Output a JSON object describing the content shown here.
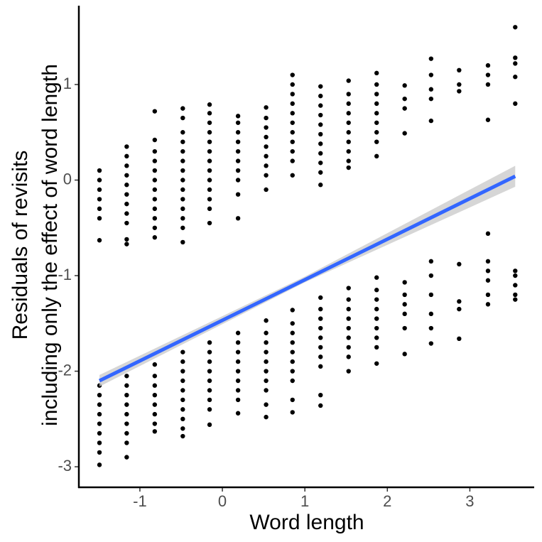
{
  "chart_data": {
    "type": "scatter",
    "xlabel": "Word length",
    "ylabel": [
      "Residuals of revisits",
      "including only the effect of word length"
    ],
    "xlim": [
      -1.74,
      3.78
    ],
    "ylim": [
      -3.215,
      1.825
    ],
    "xticks": [
      -1,
      0,
      1,
      2,
      3
    ],
    "yticks": [
      -3,
      -2,
      -1,
      0,
      1
    ],
    "grid": false,
    "point_color": "#000000",
    "columns": [
      {
        "x": -1.49,
        "y": [
          0.1,
          0.0,
          -0.1,
          -0.2,
          -0.3,
          -0.4,
          -0.63,
          -2.15,
          -2.25,
          -2.35,
          -2.45,
          -2.55,
          -2.65,
          -2.75,
          -2.85,
          -2.98
        ]
      },
      {
        "x": -1.16,
        "y": [
          0.35,
          0.25,
          0.15,
          0.05,
          -0.05,
          -0.15,
          -0.25,
          -0.35,
          -0.45,
          -0.62,
          -0.67,
          -2.05,
          -2.15,
          -2.25,
          -2.35,
          -2.45,
          -2.55,
          -2.65,
          -2.75,
          -2.9
        ]
      },
      {
        "x": -0.82,
        "y": [
          0.72,
          0.42,
          0.3,
          0.2,
          0.1,
          0.0,
          -0.1,
          -0.2,
          -0.3,
          -0.4,
          -0.5,
          -0.6,
          -1.93,
          -2.05,
          -2.15,
          -2.25,
          -2.35,
          -2.45,
          -2.55,
          -2.63
        ]
      },
      {
        "x": -0.48,
        "y": [
          0.75,
          0.65,
          0.5,
          0.4,
          0.3,
          0.2,
          0.1,
          0.0,
          -0.1,
          -0.2,
          -0.3,
          -0.4,
          -0.5,
          -0.65,
          -1.8,
          -1.9,
          -2.0,
          -2.1,
          -2.2,
          -2.3,
          -2.4,
          -2.5,
          -2.6,
          -2.68
        ]
      },
      {
        "x": -0.155,
        "y": [
          0.79,
          0.7,
          0.6,
          0.5,
          0.4,
          0.3,
          0.2,
          0.1,
          0.0,
          -0.1,
          -0.2,
          -0.3,
          -0.45,
          -1.7,
          -1.8,
          -1.9,
          -2.0,
          -2.1,
          -2.2,
          -2.3,
          -2.4,
          -2.56
        ]
      },
      {
        "x": 0.19,
        "y": [
          0.67,
          0.6,
          0.5,
          0.4,
          0.3,
          0.2,
          0.1,
          0.0,
          -0.15,
          -0.4,
          -1.6,
          -1.7,
          -1.8,
          -1.9,
          -2.0,
          -2.1,
          -2.2,
          -2.3,
          -2.44
        ]
      },
      {
        "x": 0.53,
        "y": [
          0.76,
          0.65,
          0.55,
          0.45,
          0.35,
          0.25,
          0.15,
          0.05,
          -0.1,
          -1.47,
          -1.6,
          -1.7,
          -1.8,
          -1.9,
          -2.0,
          -2.1,
          -2.2,
          -2.35,
          -2.48
        ]
      },
      {
        "x": 0.85,
        "y": [
          1.1,
          1.0,
          0.9,
          0.8,
          0.7,
          0.6,
          0.5,
          0.4,
          0.3,
          0.2,
          0.05,
          -1.36,
          -1.5,
          -1.6,
          -1.7,
          -1.8,
          -1.9,
          -2.0,
          -2.1,
          -2.3,
          -2.43
        ]
      },
      {
        "x": 1.19,
        "y": [
          0.98,
          0.88,
          0.78,
          0.68,
          0.58,
          0.48,
          0.38,
          0.28,
          0.18,
          0.08,
          -0.05,
          -1.23,
          -1.35,
          -1.45,
          -1.55,
          -1.65,
          -1.75,
          -1.85,
          -1.95,
          -2.25,
          -2.36
        ]
      },
      {
        "x": 1.53,
        "y": [
          1.04,
          0.9,
          0.8,
          0.7,
          0.6,
          0.5,
          0.4,
          0.3,
          0.2,
          0.13,
          -1.13,
          -1.25,
          -1.35,
          -1.45,
          -1.55,
          -1.65,
          -1.75,
          -1.85,
          -2.0
        ]
      },
      {
        "x": 1.87,
        "y": [
          1.12,
          1.0,
          0.9,
          0.8,
          0.7,
          0.6,
          0.5,
          0.4,
          0.25,
          -1.02,
          -1.15,
          -1.25,
          -1.35,
          -1.45,
          -1.55,
          -1.65,
          -1.75,
          -1.92
        ]
      },
      {
        "x": 2.21,
        "y": [
          0.99,
          0.85,
          0.75,
          0.49,
          -1.07,
          -1.2,
          -1.3,
          -1.4,
          -1.55,
          -1.82
        ]
      },
      {
        "x": 2.53,
        "y": [
          1.27,
          1.1,
          0.95,
          0.85,
          0.62,
          -0.85,
          -1.0,
          -1.2,
          -1.4,
          -1.55,
          -1.71
        ]
      },
      {
        "x": 2.87,
        "y": [
          1.15,
          1.0,
          0.93,
          -0.88,
          -1.27,
          -1.35,
          -1.66
        ]
      },
      {
        "x": 3.22,
        "y": [
          1.2,
          1.1,
          1.0,
          0.63,
          -0.56,
          -0.85,
          -0.95,
          -1.05,
          -1.2,
          -1.3
        ]
      },
      {
        "x": 3.55,
        "y": [
          1.6,
          1.28,
          1.22,
          1.08,
          0.8,
          -0.95,
          -1.0,
          -1.1,
          -1.2,
          -1.25
        ]
      }
    ],
    "fit": {
      "color": "#3366ff",
      "x": [
        -1.49,
        3.55
      ],
      "y": [
        -2.1,
        0.04
      ]
    },
    "band": {
      "color": "#cccccc",
      "x": [
        -1.49,
        1.0,
        3.55
      ],
      "lower": [
        -2.16,
        -1.07,
        -0.07
      ],
      "upper": [
        -2.04,
        -1.01,
        0.15
      ]
    }
  }
}
